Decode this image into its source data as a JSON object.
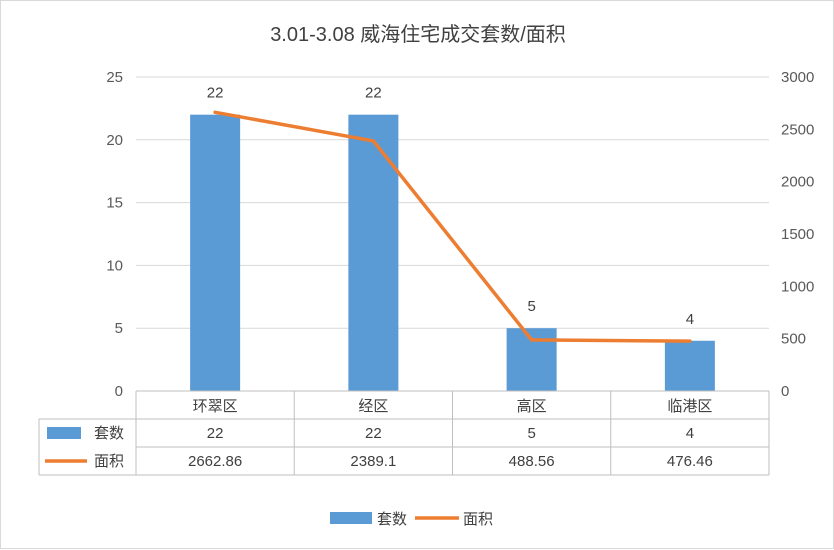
{
  "chart_data": {
    "type": "bar",
    "title": "3.01-3.08 威海住宅成交套数/面积",
    "categories": [
      "环翠区",
      "经区",
      "高区",
      "临港区"
    ],
    "series": [
      {
        "name": "套数",
        "type": "bar",
        "axis": "left",
        "values": [
          22,
          22,
          5,
          4
        ],
        "color": "#5b9bd5"
      },
      {
        "name": "面积",
        "type": "line",
        "axis": "right",
        "values": [
          2662.86,
          2389.1,
          488.56,
          476.46
        ],
        "color": "#ed7d31"
      }
    ],
    "ylim_left": [
      0,
      25
    ],
    "yticks_left": [
      0,
      5,
      10,
      15,
      20,
      25
    ],
    "ylim_right": [
      0,
      3000
    ],
    "yticks_right": [
      0,
      500,
      1000,
      1500,
      2000,
      2500,
      3000
    ],
    "bar_data_labels": [
      "22",
      "22",
      "5",
      "4"
    ],
    "table_rows": [
      {
        "name": "套数",
        "values": [
          "22",
          "22",
          "5",
          "4"
        ]
      },
      {
        "name": "面积",
        "values": [
          "2662.86",
          "2389.1",
          "488.56",
          "476.46"
        ]
      }
    ],
    "legend": {
      "position": "bottom",
      "items": [
        "套数",
        "面积"
      ]
    },
    "grid": true,
    "gridline_color": "#d9d9d9"
  }
}
